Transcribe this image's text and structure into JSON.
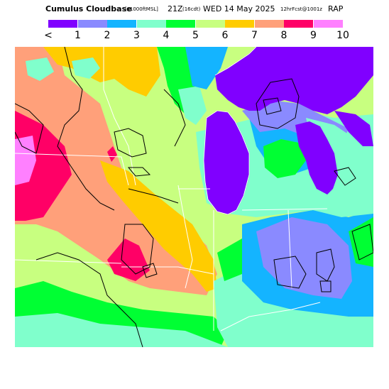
{
  "header": {
    "title": "Cumulus Cloudbase",
    "units": "[x1000ftMSL]",
    "valid_time": "21Z",
    "local_time": "(16cdt)",
    "date": "WED 14 May 2025",
    "run_info": "12hrFcst@1001z",
    "model": "RAP"
  },
  "legend": {
    "labels": [
      "<",
      "1",
      "2",
      "3",
      "4",
      "5",
      "6",
      "7",
      "8",
      "9",
      "10"
    ],
    "colors": [
      "#8000ff",
      "#8a8aff",
      "#14b4ff",
      "#80ffcc",
      "#00ff33",
      "#c8ff80",
      "#ffcc00",
      "#ffa07a",
      "#ff0066",
      "#ff80ff"
    ]
  },
  "map": {
    "region": "Upper Midwest / Great Lakes",
    "colors": {
      "lake": "#8000ff",
      "lt1": "#8000ff",
      "c1": "#8a8aff",
      "c2": "#14b4ff",
      "c3": "#80ffcc",
      "c4": "#00ff33",
      "c5": "#c8ff80",
      "c6": "#ffcc00",
      "c7": "#ffa07a",
      "c8": "#ff0066",
      "c9": "#ff80ff"
    }
  }
}
